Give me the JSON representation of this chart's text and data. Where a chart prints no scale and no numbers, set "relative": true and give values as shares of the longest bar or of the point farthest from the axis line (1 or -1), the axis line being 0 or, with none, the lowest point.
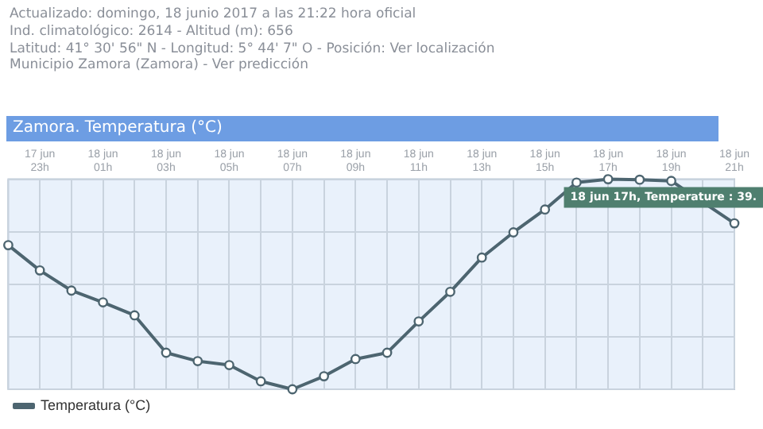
{
  "chart_data": {
    "type": "line",
    "title": "Zamora. Temperatura (°C)",
    "annotations": [
      "Actualizado: domingo, 18 junio 2017 a las 21:22 hora oficial",
      "Ind. climatológico: 2614 - Altitud (m): 656",
      "Latitud: 41° 30' 56\" N - Longitud: 5° 44' 7\" O - Posición: Ver localización",
      "Municipio Zamora (Zamora) - Ver predicción",
      {
        "text": "18 jun 17h, Temperature : 39.",
        "x": "18 jun 17h",
        "y": 1
      }
    ],
    "categories": [
      null,
      "17 jun 23h",
      null,
      "18 jun 01h",
      null,
      "18 jun 03h",
      null,
      "18 jun 05h",
      null,
      "18 jun 07h",
      null,
      "18 jun 09h",
      null,
      "18 jun 11h",
      null,
      "18 jun 13h",
      null,
      "18 jun 15h",
      null,
      "18 jun 17h",
      null,
      "18 jun 19h",
      null,
      "18 jun 21h"
    ],
    "relative": true,
    "grid": true,
    "legend": "bottom left",
    "marker": "circle",
    "line_style": "solid",
    "series": [
      {
        "name": "Temperatura (°C)",
        "color": "#4d6570",
        "values": [
          0.686,
          0.566,
          0.47,
          0.414,
          0.352,
          0.174,
          0.134,
          0.115,
          0.038,
          0,
          0.062,
          0.144,
          0.174,
          0.323,
          0.464,
          0.627,
          0.747,
          0.856,
          0.984,
          1,
          0.998,
          0.992,
          null,
          0.79
        ]
      }
    ]
  }
}
